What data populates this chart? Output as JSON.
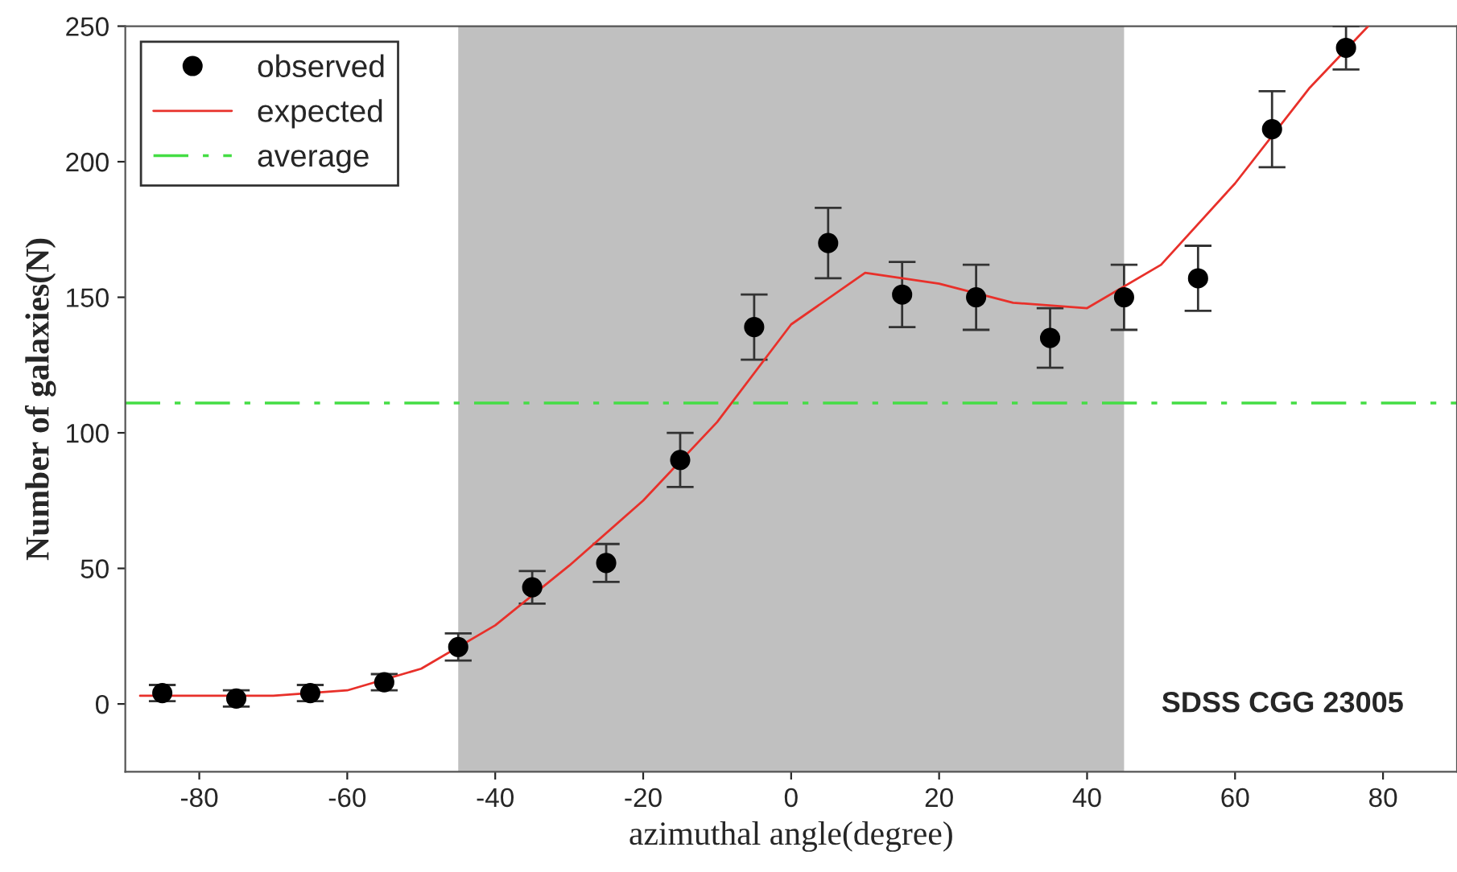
{
  "chart_data": {
    "type": "scatter",
    "xlabel": "azimuthal angle(degree)",
    "ylabel": "Number of galaxies(N)",
    "xlim": [
      -90,
      90
    ],
    "ylim": [
      -25,
      250
    ],
    "xticks": [
      -80,
      -60,
      -40,
      -20,
      0,
      20,
      40,
      60,
      80
    ],
    "yticks": [
      0,
      50,
      100,
      150,
      200,
      250
    ],
    "grid": false,
    "legend": "top left",
    "series": [
      {
        "name": "observed",
        "color": "#000000",
        "marker": "circle",
        "x": [
          -85,
          -75,
          -65,
          -55,
          -45,
          -35,
          -25,
          -15,
          -5,
          5,
          15,
          25,
          35,
          45,
          55,
          65,
          75
        ],
        "values": [
          4,
          2,
          4,
          8,
          21,
          43,
          52,
          90,
          139,
          170,
          151,
          150,
          135,
          150,
          157,
          212,
          242
        ],
        "errors": [
          3,
          3,
          3,
          3,
          5,
          6,
          7,
          10,
          12,
          13,
          12,
          12,
          11,
          12,
          12,
          14,
          8
        ]
      },
      {
        "name": "expected",
        "type": "line",
        "color": "#e8302a",
        "line_style": "solid",
        "x": [
          -88,
          -80,
          -70,
          -60,
          -50,
          -40,
          -30,
          -20,
          -10,
          0,
          10,
          20,
          30,
          40,
          50,
          60,
          70,
          78
        ],
        "values": [
          3,
          3,
          3,
          5,
          13,
          29,
          51,
          75,
          104,
          140,
          159,
          155,
          148,
          146,
          162,
          192,
          227,
          250
        ]
      }
    ],
    "ref_lines": [
      {
        "axis": "y",
        "value": 111,
        "label": "average",
        "color": "#44dd44",
        "line_style": "dashdot"
      }
    ],
    "bands": [
      {
        "axis": "x",
        "from": -45,
        "to": 45,
        "color": "#c0c0c0"
      }
    ],
    "annotations": [
      "SDSS CGG 23005"
    ]
  }
}
